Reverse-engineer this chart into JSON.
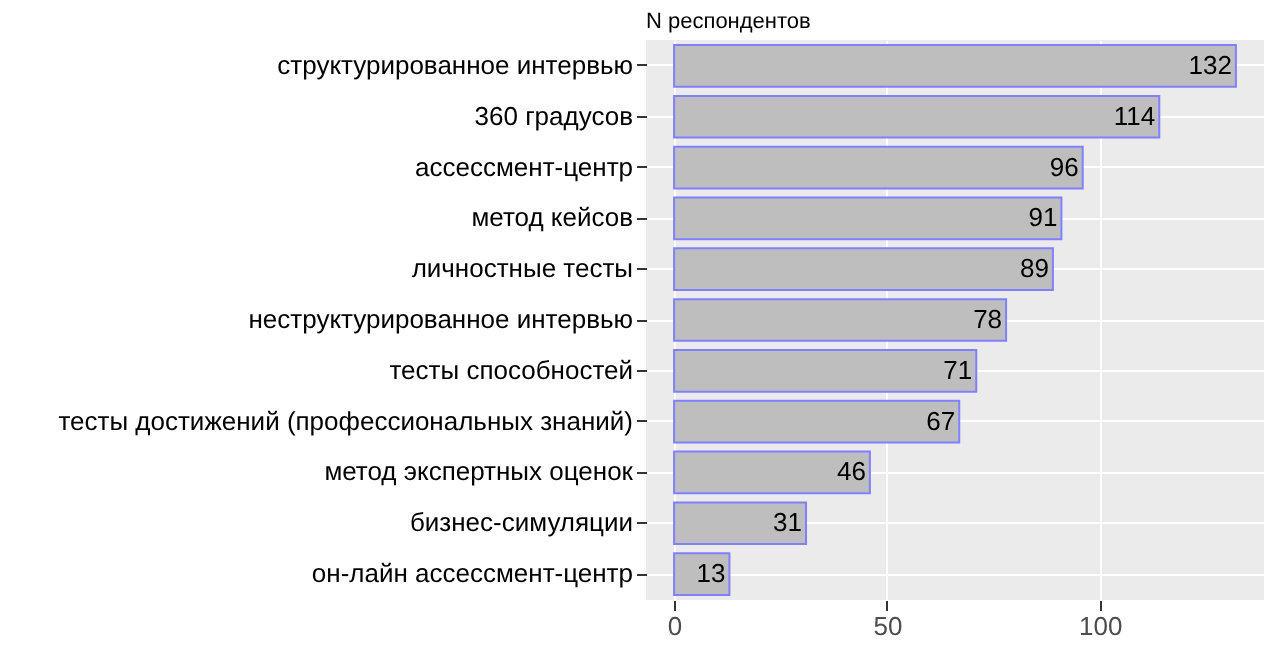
{
  "chart_data": {
    "type": "bar",
    "orientation": "horizontal",
    "title": "N респондентов",
    "categories": [
      "структурированное интервью",
      "360 градусов",
      "ассессмент-центр",
      "метод кейсов",
      "личностные тесты",
      "неструктурированное интервью",
      "тесты способностей",
      "тесты достижений (профессиональных знаний)",
      "метод экспертных оценок",
      "бизнес-симуляции",
      "он-лайн ассессмент-центр"
    ],
    "values": [
      132,
      114,
      96,
      91,
      89,
      78,
      71,
      67,
      46,
      31,
      13
    ],
    "color": "#bebebe",
    "xlim": [
      -6.6,
      138.6
    ],
    "xticks": [
      0,
      50,
      100
    ],
    "grid": true,
    "data_labels": true
  }
}
